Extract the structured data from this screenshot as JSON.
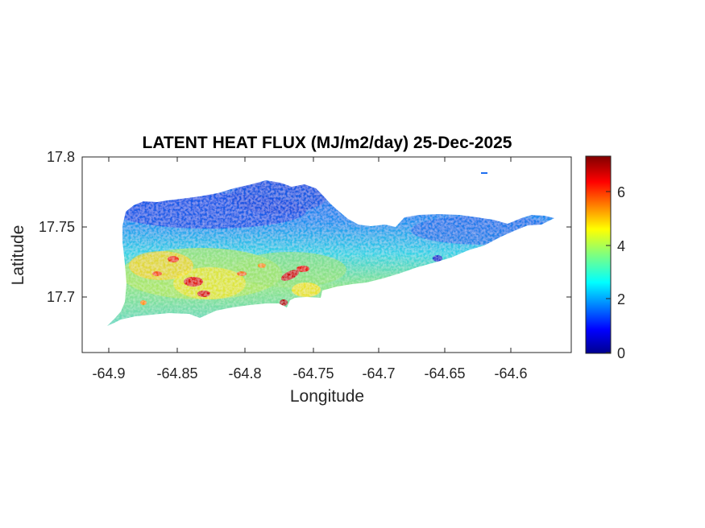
{
  "map": {
    "title": "LATENT HEAT FLUX (MJ/m2/day) 25-Dec-2025",
    "xlabel": "Longitude",
    "ylabel": "Latitude",
    "x_ticks": [
      "-64.9",
      "-64.85",
      "-64.8",
      "-64.75",
      "-64.7",
      "-64.65",
      "-64.6"
    ],
    "y_ticks": [
      "17.8",
      "17.75",
      "17.7"
    ]
  },
  "colorbar": {
    "ticks": [
      "0",
      "2",
      "4",
      "6"
    ],
    "range": [
      0,
      7.3
    ],
    "colormap": "jet"
  },
  "colors": {
    "axis": "#262626",
    "land_low": "#0a3cf0",
    "land_mid": "#29d6e0",
    "land_high": "#ffd21e",
    "land_max": "#b30000"
  }
}
